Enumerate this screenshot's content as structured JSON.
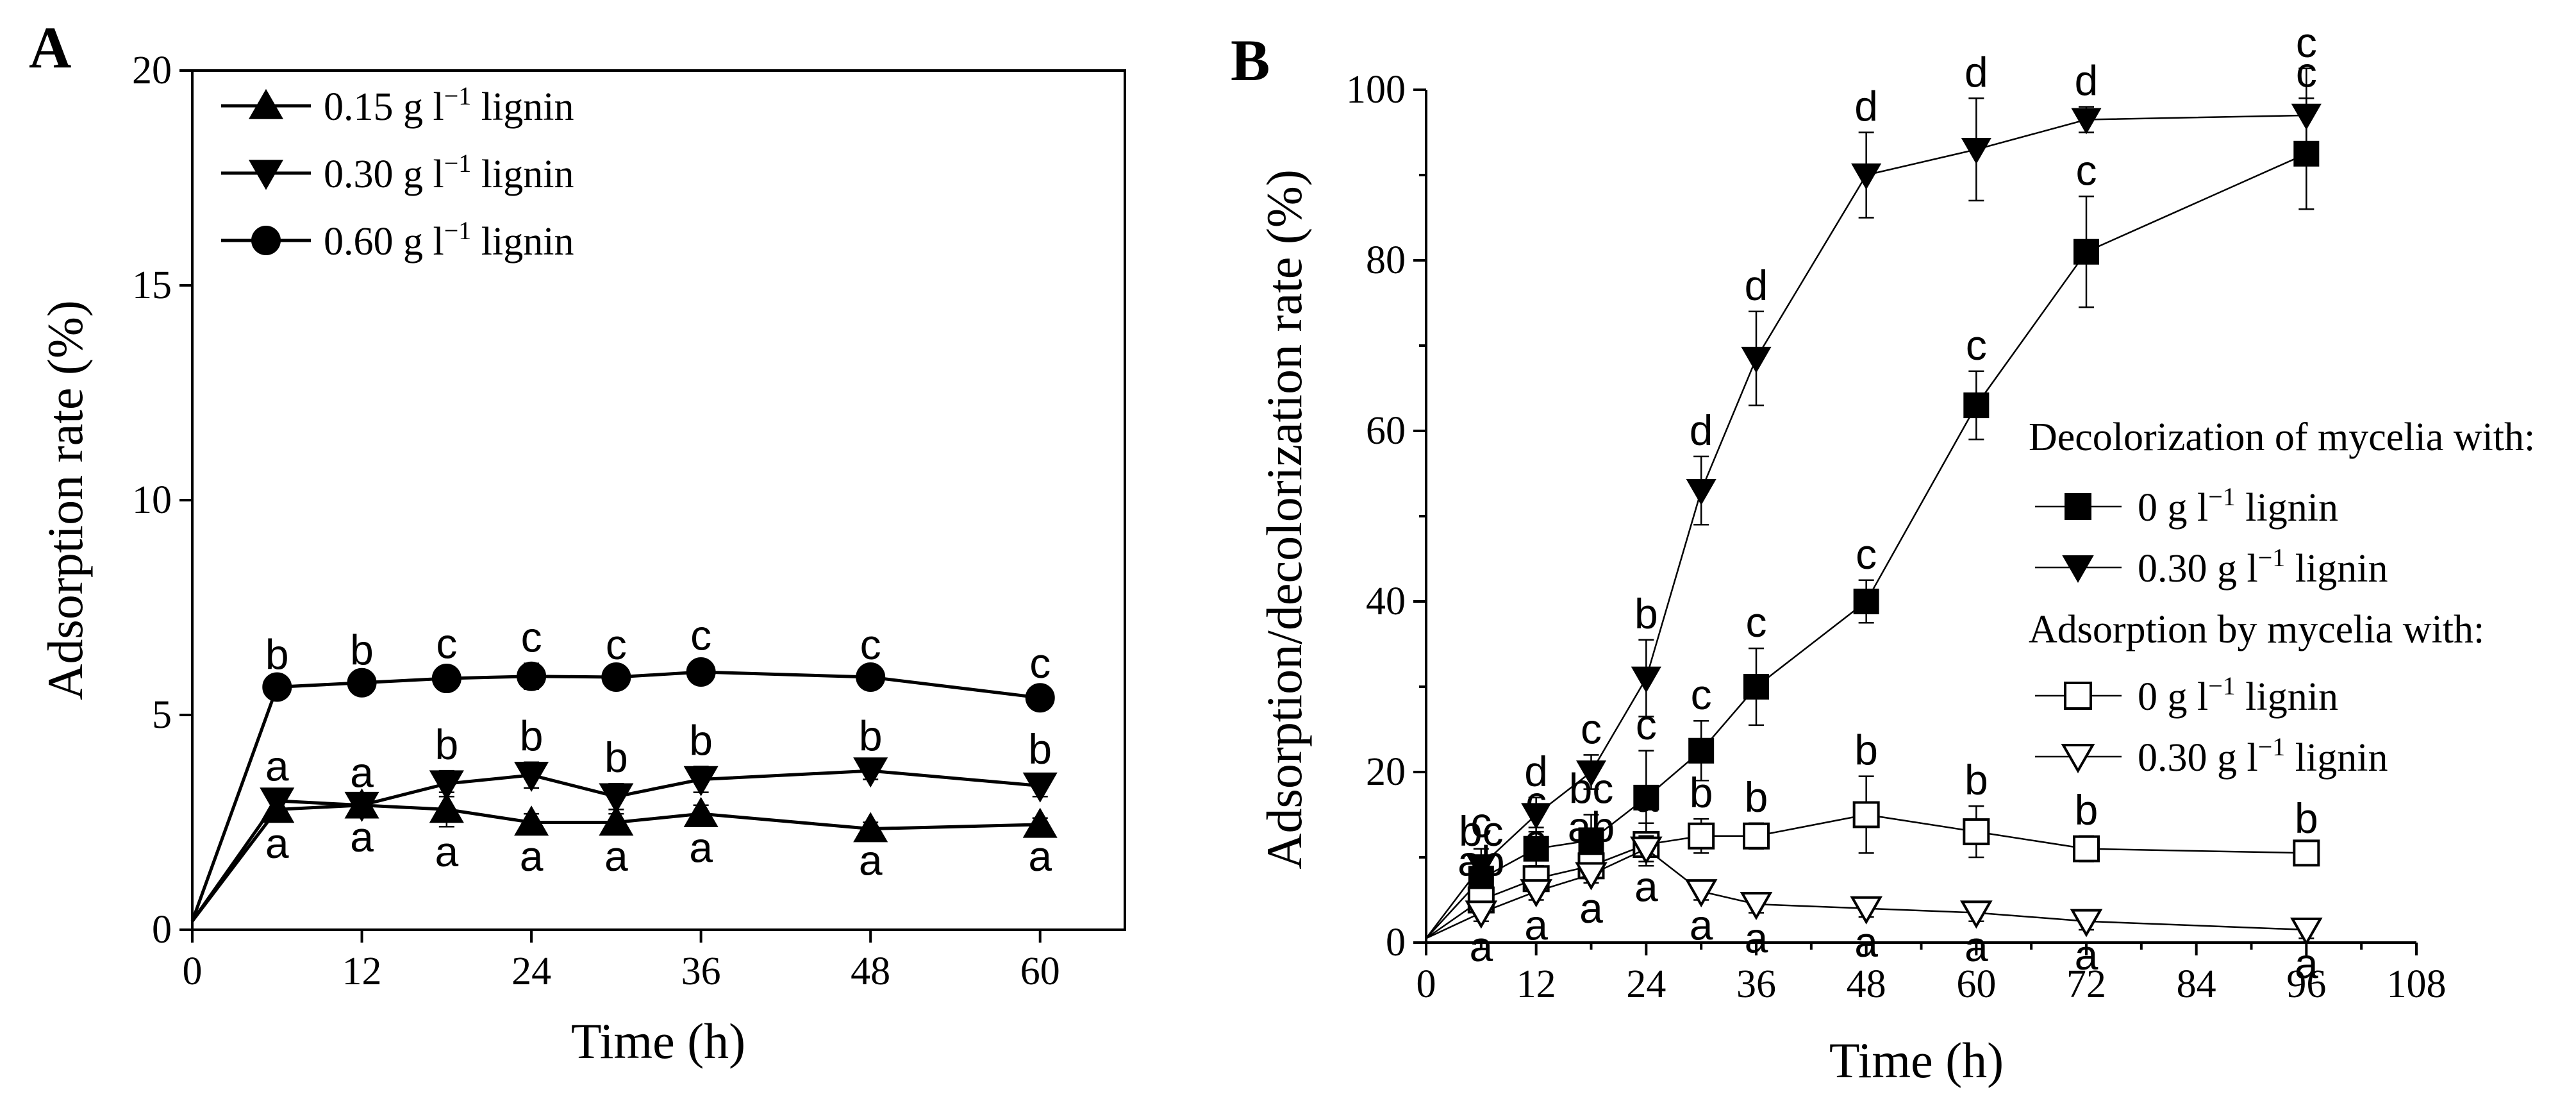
{
  "chart_data": [
    {
      "panel": "A",
      "type": "line",
      "xlabel": "Time (h)",
      "ylabel": "Adsorption rate (%)",
      "xlim": [
        0,
        66
      ],
      "ylim": [
        0,
        20
      ],
      "xticks": [
        0,
        12,
        24,
        36,
        48,
        60
      ],
      "yticks": [
        0,
        5,
        10,
        15,
        20
      ],
      "legend_position": "top-left",
      "series": [
        {
          "name": "0.15 g l",
          "sup": "−1",
          "suffix": " lignin",
          "marker": "triangle-up",
          "filled": true,
          "x": [
            0,
            6,
            12,
            18,
            24,
            30,
            36,
            48,
            60
          ],
          "y": [
            0.2,
            2.8,
            2.9,
            2.8,
            2.5,
            2.5,
            2.7,
            2.35,
            2.45
          ],
          "err": [
            0,
            0.2,
            0.15,
            0.4,
            0.2,
            0.2,
            0.2,
            0.15,
            0.15
          ],
          "letters": [
            "",
            "a",
            "a",
            "a",
            "a",
            "a",
            "a",
            "a",
            "a"
          ],
          "letter_side": "below"
        },
        {
          "name": "0.30 g l",
          "sup": "−1",
          "suffix": " lignin",
          "marker": "triangle-down",
          "filled": true,
          "x": [
            0,
            6,
            12,
            18,
            24,
            30,
            36,
            48,
            60
          ],
          "y": [
            0.2,
            3.0,
            2.9,
            3.4,
            3.6,
            3.1,
            3.5,
            3.7,
            3.35
          ],
          "err": [
            0,
            0.2,
            0.15,
            0.3,
            0.3,
            0.3,
            0.3,
            0.2,
            0.25
          ],
          "letters": [
            "",
            "a",
            "a",
            "b",
            "b",
            "b",
            "b",
            "b",
            "b"
          ],
          "letter_side": "above"
        },
        {
          "name": "0.60 g l",
          "sup": "−1",
          "suffix": " lignin",
          "marker": "circle",
          "filled": true,
          "x": [
            0,
            6,
            12,
            18,
            24,
            30,
            36,
            48,
            60
          ],
          "y": [
            0.2,
            5.65,
            5.75,
            5.85,
            5.9,
            5.88,
            6.0,
            5.88,
            5.4
          ],
          "err": [
            0,
            0.15,
            0.15,
            0.2,
            0.3,
            0.15,
            0.25,
            0.15,
            0.2
          ],
          "letters": [
            "",
            "b",
            "b",
            "c",
            "c",
            "c",
            "c",
            "c",
            "c"
          ],
          "letter_side": "above"
        }
      ]
    },
    {
      "panel": "B",
      "type": "line",
      "xlabel": "Time (h)",
      "ylabel": "Adsorption/decolorization rate (%)",
      "xlim": [
        0,
        108
      ],
      "ylim": [
        0,
        100
      ],
      "xticks": [
        0,
        12,
        24,
        36,
        48,
        60,
        72,
        84,
        96,
        108
      ],
      "yticks": [
        0,
        20,
        40,
        60,
        80,
        100
      ],
      "legend_position": "center-right",
      "legend_headings": [
        "Decolorization of mycelia with:",
        "Adsorption by mycelia with:"
      ],
      "series": [
        {
          "name": "0 g l",
          "sup": "−1",
          "suffix": " lignin",
          "group": 0,
          "marker": "square",
          "filled": true,
          "x": [
            0,
            6,
            12,
            18,
            24,
            30,
            36,
            48,
            60,
            72,
            96
          ],
          "y": [
            0.5,
            7.5,
            11,
            12,
            17,
            22.5,
            30,
            40,
            63,
            81,
            92.5
          ],
          "err": [
            0,
            2.5,
            2.5,
            3,
            5.5,
            3.5,
            4.5,
            2.5,
            4,
            6.5,
            6.5
          ],
          "letters": [
            "",
            "bc",
            "c",
            "bc",
            "c",
            "c",
            "c",
            "c",
            "c",
            "c",
            "c"
          ],
          "letter_side": "above"
        },
        {
          "name": "0.30 g l",
          "sup": "−1",
          "suffix": " lignin",
          "group": 0,
          "marker": "triangle-down",
          "filled": true,
          "x": [
            0,
            6,
            12,
            18,
            24,
            30,
            36,
            48,
            60,
            72,
            96
          ],
          "y": [
            0.5,
            9,
            15,
            20,
            31,
            53,
            68.5,
            90,
            93,
            96.5,
            97
          ],
          "err": [
            0,
            2,
            2,
            2,
            4.5,
            4,
            5.5,
            5,
            6,
            1.5,
            5.5
          ],
          "letters": [
            "",
            "c",
            "d",
            "c",
            "b",
            "d",
            "d",
            "d",
            "d",
            "d",
            "c"
          ],
          "letter_side": "above"
        },
        {
          "name": "0 g l",
          "sup": "−1",
          "suffix": " lignin",
          "group": 1,
          "marker": "square",
          "filled": false,
          "x": [
            0,
            6,
            12,
            18,
            24,
            30,
            36,
            48,
            60,
            72,
            96
          ],
          "y": [
            0.5,
            5,
            7.5,
            9,
            11.5,
            12.5,
            12.5,
            15,
            13,
            11,
            10.5
          ],
          "err": [
            0,
            1.5,
            1.5,
            1.5,
            2.5,
            2,
            1.5,
            4.5,
            3,
            1.5,
            1
          ],
          "letters": [
            "",
            "ab",
            "a",
            "ab",
            "a",
            "b",
            "b",
            "b",
            "b",
            "b",
            "b"
          ],
          "letter_side": "above"
        },
        {
          "name": "0.30 g l",
          "sup": "−1",
          "suffix": " lignin",
          "group": 1,
          "marker": "triangle-down",
          "filled": false,
          "x": [
            0,
            6,
            12,
            18,
            24,
            30,
            36,
            48,
            60,
            72,
            96
          ],
          "y": [
            0.5,
            3.5,
            6,
            8,
            11,
            6,
            4.5,
            4,
            3.5,
            2.5,
            1.5
          ],
          "err": [
            0,
            1,
            1,
            1,
            1.5,
            1,
            1,
            1,
            1,
            1,
            1
          ],
          "letters": [
            "",
            "a",
            "a",
            "a",
            "a",
            "a",
            "a",
            "a",
            "a",
            "a",
            "a"
          ],
          "letter_side": "below"
        }
      ]
    }
  ]
}
